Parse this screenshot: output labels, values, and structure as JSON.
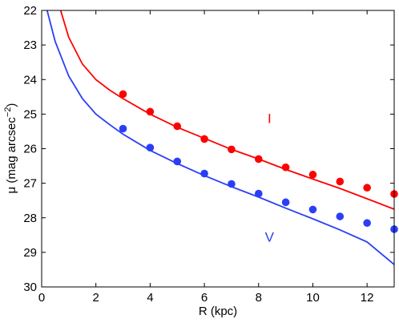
{
  "chart_data": {
    "type": "line",
    "xlabel": "R (kpc)",
    "ylabel": "μ (mag arcsec",
    "ylabel_sup": "−2",
    "ylabel_close": ")",
    "xlim": [
      0,
      13
    ],
    "ylim": [
      22,
      30
    ],
    "y_inverted": true,
    "grid": false,
    "xticks": [
      0,
      2,
      4,
      6,
      8,
      10,
      12
    ],
    "yticks": [
      22,
      23,
      24,
      25,
      26,
      27,
      28,
      29,
      30
    ],
    "xtick_labels": [
      "0",
      "2",
      "4",
      "6",
      "8",
      "10",
      "12"
    ],
    "ytick_labels": [
      "22",
      "23",
      "24",
      "25",
      "26",
      "27",
      "28",
      "29",
      "30"
    ],
    "series": [
      {
        "name": "I",
        "color": "#ff0000",
        "points": {
          "x": [
            3,
            4,
            5,
            6,
            7,
            8,
            9,
            10,
            11,
            12,
            13
          ],
          "y": [
            24.42,
            24.93,
            25.35,
            25.72,
            26.02,
            26.3,
            26.54,
            26.75,
            26.95,
            27.13,
            27.31
          ]
        },
        "fit": {
          "x": [
            0.7,
            1,
            1.5,
            2,
            2.5,
            3,
            4,
            5,
            6,
            7,
            8,
            9,
            10,
            11,
            12,
            13
          ],
          "y": [
            22.0,
            22.78,
            23.55,
            24.0,
            24.3,
            24.55,
            25.0,
            25.38,
            25.7,
            26.02,
            26.3,
            26.6,
            26.88,
            27.15,
            27.45,
            27.75
          ]
        }
      },
      {
        "name": "V",
        "color": "#2a3ff5",
        "points": {
          "x": [
            3,
            4,
            5,
            6,
            7,
            8,
            9,
            10,
            11,
            12,
            13
          ],
          "y": [
            25.42,
            25.97,
            26.37,
            26.72,
            27.02,
            27.3,
            27.55,
            27.76,
            27.96,
            28.15,
            28.33
          ]
        },
        "fit": {
          "x": [
            0.2,
            0.5,
            1,
            1.5,
            2,
            2.5,
            3,
            4,
            5,
            6,
            7,
            8,
            9,
            10,
            11,
            12,
            13
          ],
          "y": [
            22.0,
            22.9,
            23.9,
            24.55,
            25.0,
            25.3,
            25.58,
            26.05,
            26.43,
            26.78,
            27.1,
            27.4,
            27.72,
            28.03,
            28.35,
            28.7,
            29.35
          ]
        }
      }
    ]
  }
}
